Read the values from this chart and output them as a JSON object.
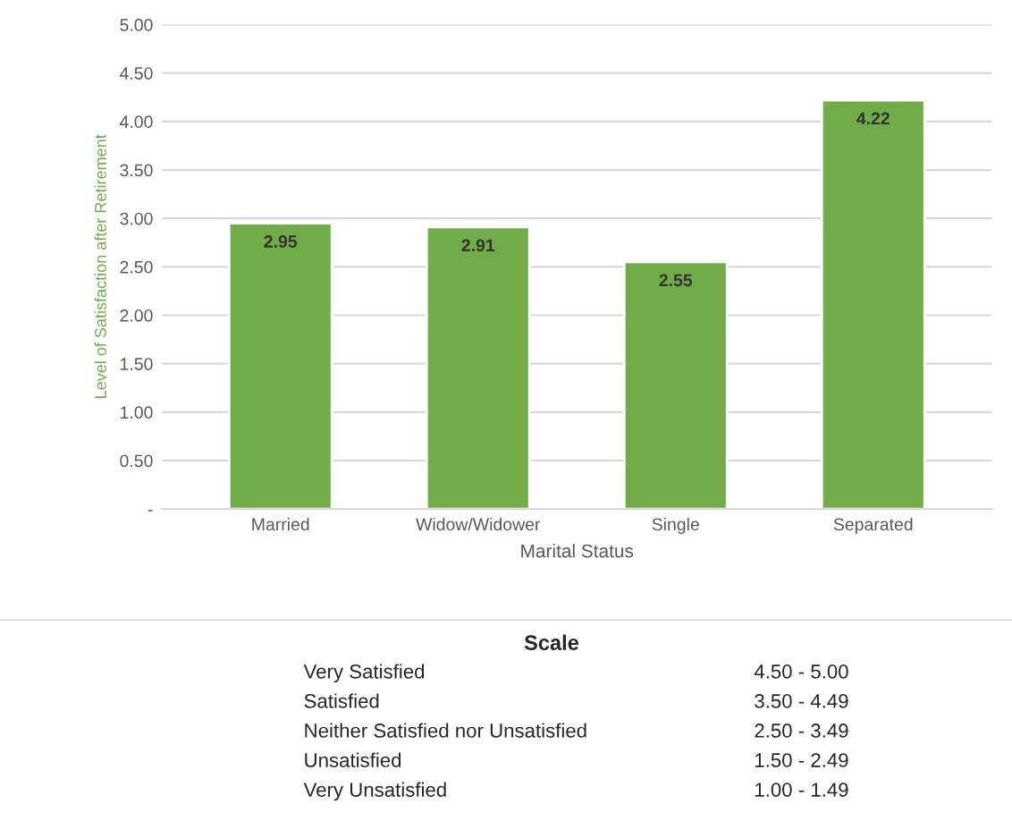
{
  "chart_data": {
    "type": "bar",
    "xlabel": "Marital Status",
    "ylabel": "Level of Satisfaction after Retirement",
    "categories": [
      "Married",
      "Widow/Widower",
      "Single",
      "Separated"
    ],
    "values": [
      2.95,
      2.91,
      2.55,
      4.22
    ],
    "color": "#70ad47",
    "ylim": [
      0,
      5
    ],
    "yticks": [
      {
        "value": 0,
        "label": "-"
      },
      {
        "value": 0.5,
        "label": "0.50"
      },
      {
        "value": 1,
        "label": "1.00"
      },
      {
        "value": 1.5,
        "label": "1.50"
      },
      {
        "value": 2,
        "label": "2.00"
      },
      {
        "value": 2.5,
        "label": "2.50"
      },
      {
        "value": 3,
        "label": "3.00"
      },
      {
        "value": 3.5,
        "label": "3.50"
      },
      {
        "value": 4,
        "label": "4.00"
      },
      {
        "value": 4.5,
        "label": "4.50"
      },
      {
        "value": 5,
        "label": "5.00"
      }
    ],
    "grid": "y",
    "data_labels": true,
    "legend": false,
    "annotations": [
      "Scale",
      "Very Satisfied",
      "4.50 - 5.00",
      "Satisfied",
      "3.50 - 4.49",
      "Neither Satisfied nor Unsatisfied",
      "2.50 - 3.49",
      "Unsatisfied",
      "1.50 - 2.49",
      "Very Unsatisfied",
      "1.00 - 1.49"
    ]
  }
}
